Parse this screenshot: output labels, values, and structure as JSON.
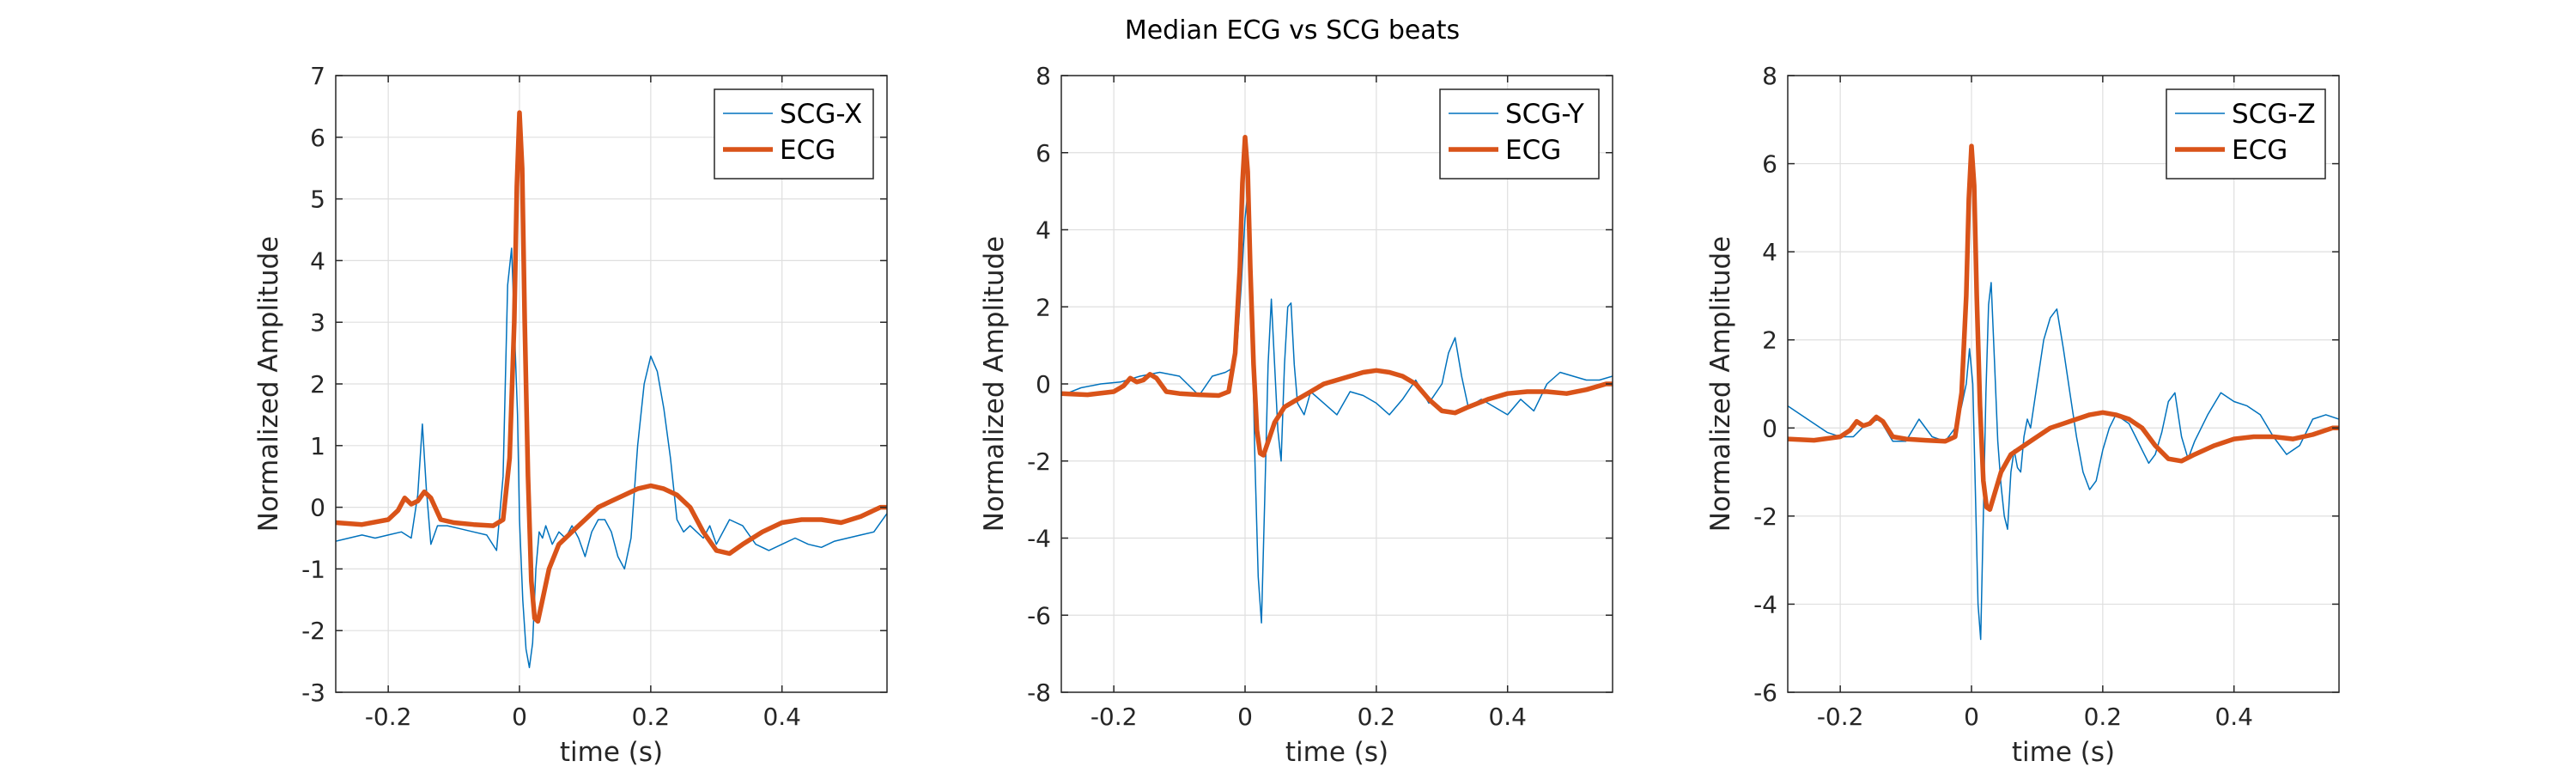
{
  "figure_title": "Median ECG vs SCG beats",
  "chart_data": [
    {
      "type": "line",
      "xlabel": "time (s)",
      "ylabel": "Normalized Amplitude",
      "xlim": [
        -0.28,
        0.56
      ],
      "ylim": [
        -3,
        7
      ],
      "xticks": [
        -0.2,
        0,
        0.2,
        0.4
      ],
      "xtick_labels": [
        "-0.2",
        "0",
        "0.2",
        "0.4"
      ],
      "yticks": [
        -3,
        -2,
        -1,
        0,
        1,
        2,
        3,
        4,
        5,
        6,
        7
      ],
      "ytick_labels": [
        "-3",
        "-2",
        "-1",
        "0",
        "1",
        "2",
        "3",
        "4",
        "5",
        "6",
        "7"
      ],
      "grid": true,
      "legend": "top-right",
      "series": [
        {
          "name": "SCG-X",
          "color": "#0072BD",
          "x": [
            -0.28,
            -0.26,
            -0.24,
            -0.22,
            -0.2,
            -0.18,
            -0.165,
            -0.155,
            -0.148,
            -0.142,
            -0.135,
            -0.125,
            -0.11,
            -0.09,
            -0.07,
            -0.05,
            -0.035,
            -0.025,
            -0.018,
            -0.012,
            -0.008,
            -0.003,
            0.0,
            0.005,
            0.01,
            0.015,
            0.02,
            0.025,
            0.03,
            0.035,
            0.04,
            0.05,
            0.06,
            0.07,
            0.08,
            0.09,
            0.1,
            0.11,
            0.12,
            0.13,
            0.14,
            0.15,
            0.16,
            0.17,
            0.18,
            0.19,
            0.2,
            0.21,
            0.22,
            0.23,
            0.24,
            0.25,
            0.26,
            0.27,
            0.28,
            0.29,
            0.3,
            0.32,
            0.34,
            0.36,
            0.38,
            0.4,
            0.42,
            0.44,
            0.46,
            0.48,
            0.5,
            0.52,
            0.54,
            0.56
          ],
          "y": [
            -0.55,
            -0.5,
            -0.45,
            -0.5,
            -0.45,
            -0.4,
            -0.5,
            0.2,
            1.35,
            0.3,
            -0.6,
            -0.3,
            -0.3,
            -0.35,
            -0.4,
            -0.45,
            -0.7,
            0.5,
            3.6,
            4.2,
            3.0,
            1.5,
            -0.2,
            -1.5,
            -2.3,
            -2.6,
            -2.2,
            -1.0,
            -0.4,
            -0.5,
            -0.3,
            -0.6,
            -0.4,
            -0.5,
            -0.3,
            -0.5,
            -0.8,
            -0.4,
            -0.2,
            -0.2,
            -0.4,
            -0.8,
            -1.0,
            -0.5,
            1.0,
            2.0,
            2.45,
            2.2,
            1.6,
            0.8,
            -0.2,
            -0.4,
            -0.3,
            -0.4,
            -0.5,
            -0.3,
            -0.6,
            -0.2,
            -0.3,
            -0.6,
            -0.7,
            -0.6,
            -0.5,
            -0.6,
            -0.65,
            -0.55,
            -0.5,
            -0.45,
            -0.4,
            -0.1
          ]
        },
        {
          "name": "ECG",
          "color": "#D95319",
          "x": [
            -0.28,
            -0.24,
            -0.2,
            -0.185,
            -0.175,
            -0.165,
            -0.155,
            -0.145,
            -0.135,
            -0.12,
            -0.1,
            -0.07,
            -0.04,
            -0.025,
            -0.015,
            -0.008,
            -0.004,
            0.0,
            0.004,
            0.008,
            0.013,
            0.018,
            0.023,
            0.028,
            0.035,
            0.045,
            0.06,
            0.08,
            0.1,
            0.12,
            0.14,
            0.16,
            0.18,
            0.2,
            0.22,
            0.24,
            0.26,
            0.28,
            0.3,
            0.32,
            0.34,
            0.37,
            0.4,
            0.43,
            0.46,
            0.49,
            0.52,
            0.55,
            0.56
          ],
          "y": [
            -0.25,
            -0.28,
            -0.2,
            -0.05,
            0.15,
            0.05,
            0.1,
            0.25,
            0.15,
            -0.2,
            -0.25,
            -0.28,
            -0.3,
            -0.2,
            0.8,
            3.0,
            5.2,
            6.4,
            5.5,
            3.0,
            0.5,
            -1.2,
            -1.8,
            -1.85,
            -1.5,
            -1.0,
            -0.6,
            -0.4,
            -0.2,
            0.0,
            0.1,
            0.2,
            0.3,
            0.35,
            0.3,
            0.2,
            0.0,
            -0.4,
            -0.7,
            -0.75,
            -0.6,
            -0.4,
            -0.25,
            -0.2,
            -0.2,
            -0.25,
            -0.15,
            0.0,
            0.0
          ]
        }
      ]
    },
    {
      "type": "line",
      "xlabel": "time (s)",
      "ylabel": "Normalized Amplitude",
      "xlim": [
        -0.28,
        0.56
      ],
      "ylim": [
        -8,
        8
      ],
      "xticks": [
        -0.2,
        0,
        0.2,
        0.4
      ],
      "xtick_labels": [
        "-0.2",
        "0",
        "0.2",
        "0.4"
      ],
      "yticks": [
        -8,
        -6,
        -4,
        -2,
        0,
        2,
        4,
        6,
        8
      ],
      "ytick_labels": [
        "-8",
        "-6",
        "-4",
        "-2",
        "0",
        "2",
        "4",
        "6",
        "8"
      ],
      "grid": true,
      "legend": "top-right",
      "series": [
        {
          "name": "SCG-Y",
          "color": "#0072BD",
          "x": [
            -0.28,
            -0.25,
            -0.22,
            -0.19,
            -0.16,
            -0.13,
            -0.1,
            -0.07,
            -0.05,
            -0.03,
            -0.02,
            -0.012,
            -0.006,
            0.0,
            0.005,
            0.01,
            0.015,
            0.02,
            0.025,
            0.03,
            0.035,
            0.04,
            0.045,
            0.05,
            0.055,
            0.06,
            0.065,
            0.07,
            0.075,
            0.08,
            0.09,
            0.1,
            0.12,
            0.14,
            0.16,
            0.18,
            0.2,
            0.22,
            0.24,
            0.26,
            0.28,
            0.3,
            0.31,
            0.32,
            0.33,
            0.34,
            0.36,
            0.38,
            0.4,
            0.42,
            0.44,
            0.46,
            0.48,
            0.5,
            0.52,
            0.54,
            0.56
          ],
          "y": [
            -0.3,
            -0.1,
            0.0,
            0.05,
            0.2,
            0.3,
            0.2,
            -0.3,
            0.2,
            0.3,
            0.4,
            1.0,
            2.5,
            4.3,
            5.1,
            2.0,
            -2.0,
            -5.0,
            -6.2,
            -3.0,
            0.5,
            2.2,
            0.5,
            -1.2,
            -2.0,
            0.5,
            2.0,
            2.1,
            0.5,
            -0.5,
            -0.8,
            -0.2,
            -0.5,
            -0.8,
            -0.2,
            -0.3,
            -0.5,
            -0.8,
            -0.4,
            0.1,
            -0.5,
            0.0,
            0.8,
            1.2,
            0.2,
            -0.6,
            -0.4,
            -0.6,
            -0.8,
            -0.4,
            -0.7,
            0.0,
            0.3,
            0.2,
            0.1,
            0.1,
            0.2
          ]
        },
        {
          "name": "ECG",
          "color": "#D95319",
          "x": [
            -0.28,
            -0.24,
            -0.2,
            -0.185,
            -0.175,
            -0.165,
            -0.155,
            -0.145,
            -0.135,
            -0.12,
            -0.1,
            -0.07,
            -0.04,
            -0.025,
            -0.015,
            -0.008,
            -0.004,
            0.0,
            0.004,
            0.008,
            0.013,
            0.018,
            0.023,
            0.028,
            0.035,
            0.045,
            0.06,
            0.08,
            0.1,
            0.12,
            0.14,
            0.16,
            0.18,
            0.2,
            0.22,
            0.24,
            0.26,
            0.28,
            0.3,
            0.32,
            0.34,
            0.37,
            0.4,
            0.43,
            0.46,
            0.49,
            0.52,
            0.55,
            0.56
          ],
          "y": [
            -0.25,
            -0.28,
            -0.2,
            -0.05,
            0.15,
            0.05,
            0.1,
            0.25,
            0.15,
            -0.2,
            -0.25,
            -0.28,
            -0.3,
            -0.2,
            0.8,
            3.0,
            5.2,
            6.4,
            5.5,
            3.0,
            0.5,
            -1.2,
            -1.8,
            -1.85,
            -1.5,
            -1.0,
            -0.6,
            -0.4,
            -0.2,
            0.0,
            0.1,
            0.2,
            0.3,
            0.35,
            0.3,
            0.2,
            0.0,
            -0.4,
            -0.7,
            -0.75,
            -0.6,
            -0.4,
            -0.25,
            -0.2,
            -0.2,
            -0.25,
            -0.15,
            0.0,
            0.0
          ]
        }
      ]
    },
    {
      "type": "line",
      "xlabel": "time (s)",
      "ylabel": "Normalized Amplitude",
      "xlim": [
        -0.28,
        0.56
      ],
      "ylim": [
        -6,
        8
      ],
      "xticks": [
        -0.2,
        0,
        0.2,
        0.4
      ],
      "xtick_labels": [
        "-0.2",
        "0",
        "0.2",
        "0.4"
      ],
      "yticks": [
        -6,
        -4,
        -2,
        0,
        2,
        4,
        6,
        8
      ],
      "ytick_labels": [
        "-6",
        "-4",
        "-2",
        "0",
        "2",
        "4",
        "6",
        "8"
      ],
      "grid": true,
      "legend": "top-right",
      "series": [
        {
          "name": "SCG-Z",
          "color": "#0072BD",
          "x": [
            -0.28,
            -0.25,
            -0.22,
            -0.2,
            -0.18,
            -0.16,
            -0.14,
            -0.12,
            -0.1,
            -0.08,
            -0.06,
            -0.04,
            -0.025,
            -0.015,
            -0.008,
            -0.003,
            0.002,
            0.006,
            0.01,
            0.014,
            0.018,
            0.022,
            0.026,
            0.03,
            0.035,
            0.04,
            0.045,
            0.05,
            0.055,
            0.06,
            0.065,
            0.07,
            0.075,
            0.08,
            0.085,
            0.09,
            0.1,
            0.11,
            0.12,
            0.13,
            0.14,
            0.15,
            0.16,
            0.17,
            0.18,
            0.19,
            0.2,
            0.21,
            0.22,
            0.23,
            0.24,
            0.25,
            0.26,
            0.27,
            0.28,
            0.29,
            0.3,
            0.31,
            0.32,
            0.33,
            0.34,
            0.36,
            0.38,
            0.4,
            0.42,
            0.44,
            0.46,
            0.48,
            0.5,
            0.52,
            0.54,
            0.56
          ],
          "y": [
            0.5,
            0.2,
            -0.1,
            -0.2,
            -0.2,
            0.1,
            0.2,
            -0.3,
            -0.3,
            0.2,
            -0.2,
            -0.3,
            0.0,
            0.5,
            1.0,
            1.8,
            1.0,
            -1.5,
            -4.0,
            -4.8,
            -2.0,
            0.8,
            2.8,
            3.3,
            1.5,
            -0.3,
            -1.3,
            -2.0,
            -2.3,
            -1.0,
            -0.5,
            -0.9,
            -1.0,
            -0.2,
            0.2,
            0.0,
            1.0,
            2.0,
            2.5,
            2.7,
            1.8,
            0.8,
            -0.2,
            -1.0,
            -1.4,
            -1.2,
            -0.5,
            0.0,
            0.3,
            0.2,
            0.1,
            -0.2,
            -0.5,
            -0.8,
            -0.6,
            -0.1,
            0.6,
            0.8,
            -0.2,
            -0.7,
            -0.3,
            0.3,
            0.8,
            0.6,
            0.5,
            0.3,
            -0.2,
            -0.6,
            -0.4,
            0.2,
            0.3,
            0.2
          ]
        },
        {
          "name": "ECG",
          "color": "#D95319",
          "x": [
            -0.28,
            -0.24,
            -0.2,
            -0.185,
            -0.175,
            -0.165,
            -0.155,
            -0.145,
            -0.135,
            -0.12,
            -0.1,
            -0.07,
            -0.04,
            -0.025,
            -0.015,
            -0.008,
            -0.004,
            0.0,
            0.004,
            0.008,
            0.013,
            0.018,
            0.023,
            0.028,
            0.035,
            0.045,
            0.06,
            0.08,
            0.1,
            0.12,
            0.14,
            0.16,
            0.18,
            0.2,
            0.22,
            0.24,
            0.26,
            0.28,
            0.3,
            0.32,
            0.34,
            0.37,
            0.4,
            0.43,
            0.46,
            0.49,
            0.52,
            0.55,
            0.56
          ],
          "y": [
            -0.25,
            -0.28,
            -0.2,
            -0.05,
            0.15,
            0.05,
            0.1,
            0.25,
            0.15,
            -0.2,
            -0.25,
            -0.28,
            -0.3,
            -0.2,
            0.8,
            3.0,
            5.2,
            6.4,
            5.5,
            3.0,
            0.5,
            -1.2,
            -1.8,
            -1.85,
            -1.5,
            -1.0,
            -0.6,
            -0.4,
            -0.2,
            0.0,
            0.1,
            0.2,
            0.3,
            0.35,
            0.3,
            0.2,
            0.0,
            -0.4,
            -0.7,
            -0.75,
            -0.6,
            -0.4,
            -0.25,
            -0.2,
            -0.2,
            -0.25,
            -0.15,
            0.0,
            0.0
          ]
        }
      ]
    }
  ]
}
